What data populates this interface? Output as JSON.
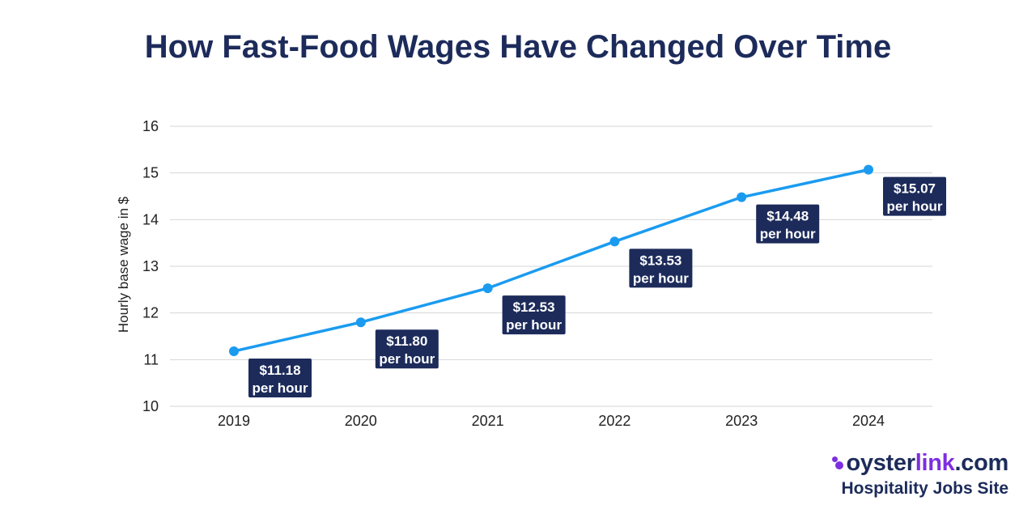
{
  "chart_data": {
    "type": "line",
    "title": "How Fast-Food Wages Have Changed Over Time",
    "ylabel": "Hourly base wage in $",
    "xlabel": "",
    "x": [
      "2019",
      "2020",
      "2021",
      "2022",
      "2023",
      "2024"
    ],
    "ylim": [
      10,
      16
    ],
    "yticks": [
      "10",
      "11",
      "12",
      "13",
      "14",
      "15",
      "16"
    ],
    "grid": true,
    "line_color": "#1a9bf0",
    "series": [
      {
        "values": [
          11.18,
          11.8,
          12.53,
          13.53,
          14.48,
          15.07
        ],
        "data_labels": [
          [
            "$11.18",
            "per hour"
          ],
          [
            "$11.80",
            "per hour"
          ],
          [
            "$12.53",
            "per hour"
          ],
          [
            "$13.53",
            "per hour"
          ],
          [
            "$14.48",
            "per hour"
          ],
          [
            "$15.07",
            "per hour"
          ]
        ]
      }
    ]
  },
  "branding": {
    "name_prefix": "oyster",
    "name_link": "link",
    "name_suffix": ".com",
    "tagline": "Hospitality Jobs Site",
    "accent_color": "#7d2ee0",
    "text_color": "#1c2b5a"
  }
}
